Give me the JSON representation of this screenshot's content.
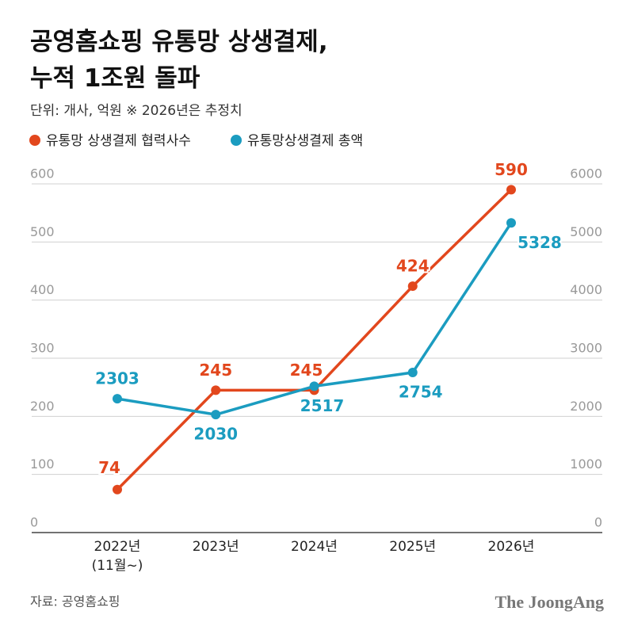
{
  "chart_data": {
    "type": "line",
    "title": "공영홈쇼핑 유통망 상생결제,\n누적 1조원 돌파",
    "subtitle": "단위: 개사, 억원  ※ 2026년은 추정치",
    "source": "자료: 공영홈쇼핑",
    "brand": "The JoongAng",
    "categories": [
      "2022년\n(11월~)",
      "2023년",
      "2024년",
      "2025년",
      "2026년"
    ],
    "series": [
      {
        "name": "유통망 상생결제 협력사수",
        "color": "#e2471d",
        "values": [
          74,
          245,
          245,
          424,
          590
        ]
      },
      {
        "name": "유통망상생결제 총액",
        "color": "#1b9cc0",
        "values": [
          2303,
          2030,
          2517,
          2754,
          5328
        ],
        "axis": "y2"
      }
    ],
    "ylim": [
      0,
      600
    ],
    "yticks": [
      0,
      100,
      200,
      300,
      400,
      500,
      600
    ],
    "y2lim": [
      0,
      6000
    ],
    "y2ticks": [
      0,
      1000,
      2000,
      3000,
      4000,
      5000,
      6000
    ],
    "grid": true
  }
}
